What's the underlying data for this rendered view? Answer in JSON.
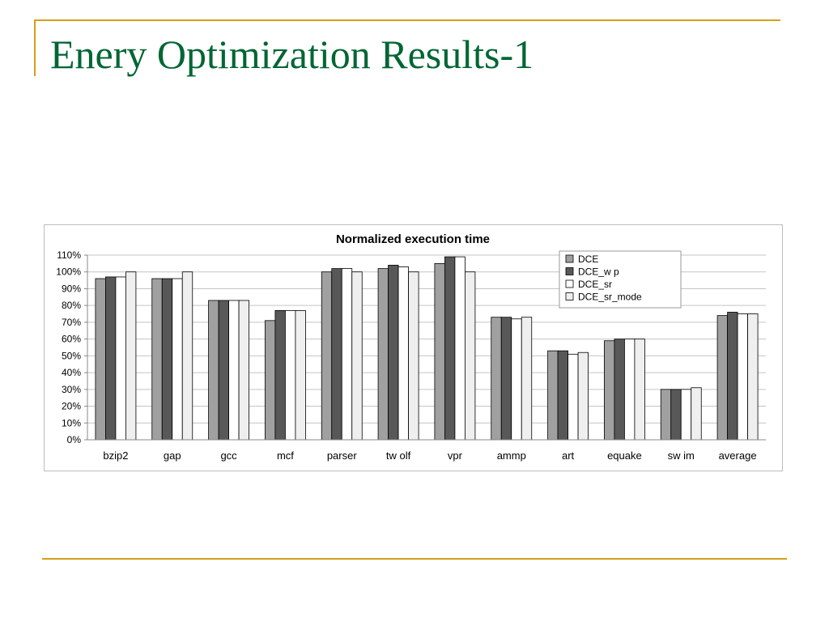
{
  "slide": {
    "title": "Enery Optimization Results-1"
  },
  "chart_data": {
    "type": "bar",
    "title": "Normalized execution time",
    "xlabel": "",
    "ylabel": "",
    "ylim": [
      0,
      110
    ],
    "y_tick_step": 10,
    "y_tick_format": "percent",
    "grid": true,
    "legend_position": "top-right",
    "categories": [
      "bzip2",
      "gap",
      "gcc",
      "mcf",
      "parser",
      "tw olf",
      "vpr",
      "ammp",
      "art",
      "equake",
      "sw im",
      "average"
    ],
    "series": [
      {
        "name": "DCE",
        "color": "#a0a0a0",
        "values": [
          96,
          96,
          83,
          71,
          100,
          102,
          105,
          73,
          53,
          59,
          30,
          74
        ]
      },
      {
        "name": "DCE_w p",
        "color": "#585858",
        "values": [
          97,
          96,
          83,
          77,
          102,
          104,
          109,
          73,
          53,
          60,
          30,
          76
        ]
      },
      {
        "name": "DCE_sr",
        "color": "#ffffff",
        "values": [
          97,
          96,
          83,
          77,
          102,
          103,
          109,
          72,
          51,
          60,
          30,
          75
        ]
      },
      {
        "name": "DCE_sr_mode",
        "color": "#efefef",
        "values": [
          100,
          100,
          83,
          77,
          100,
          100,
          100,
          73,
          52,
          60,
          31,
          75
        ]
      }
    ]
  }
}
